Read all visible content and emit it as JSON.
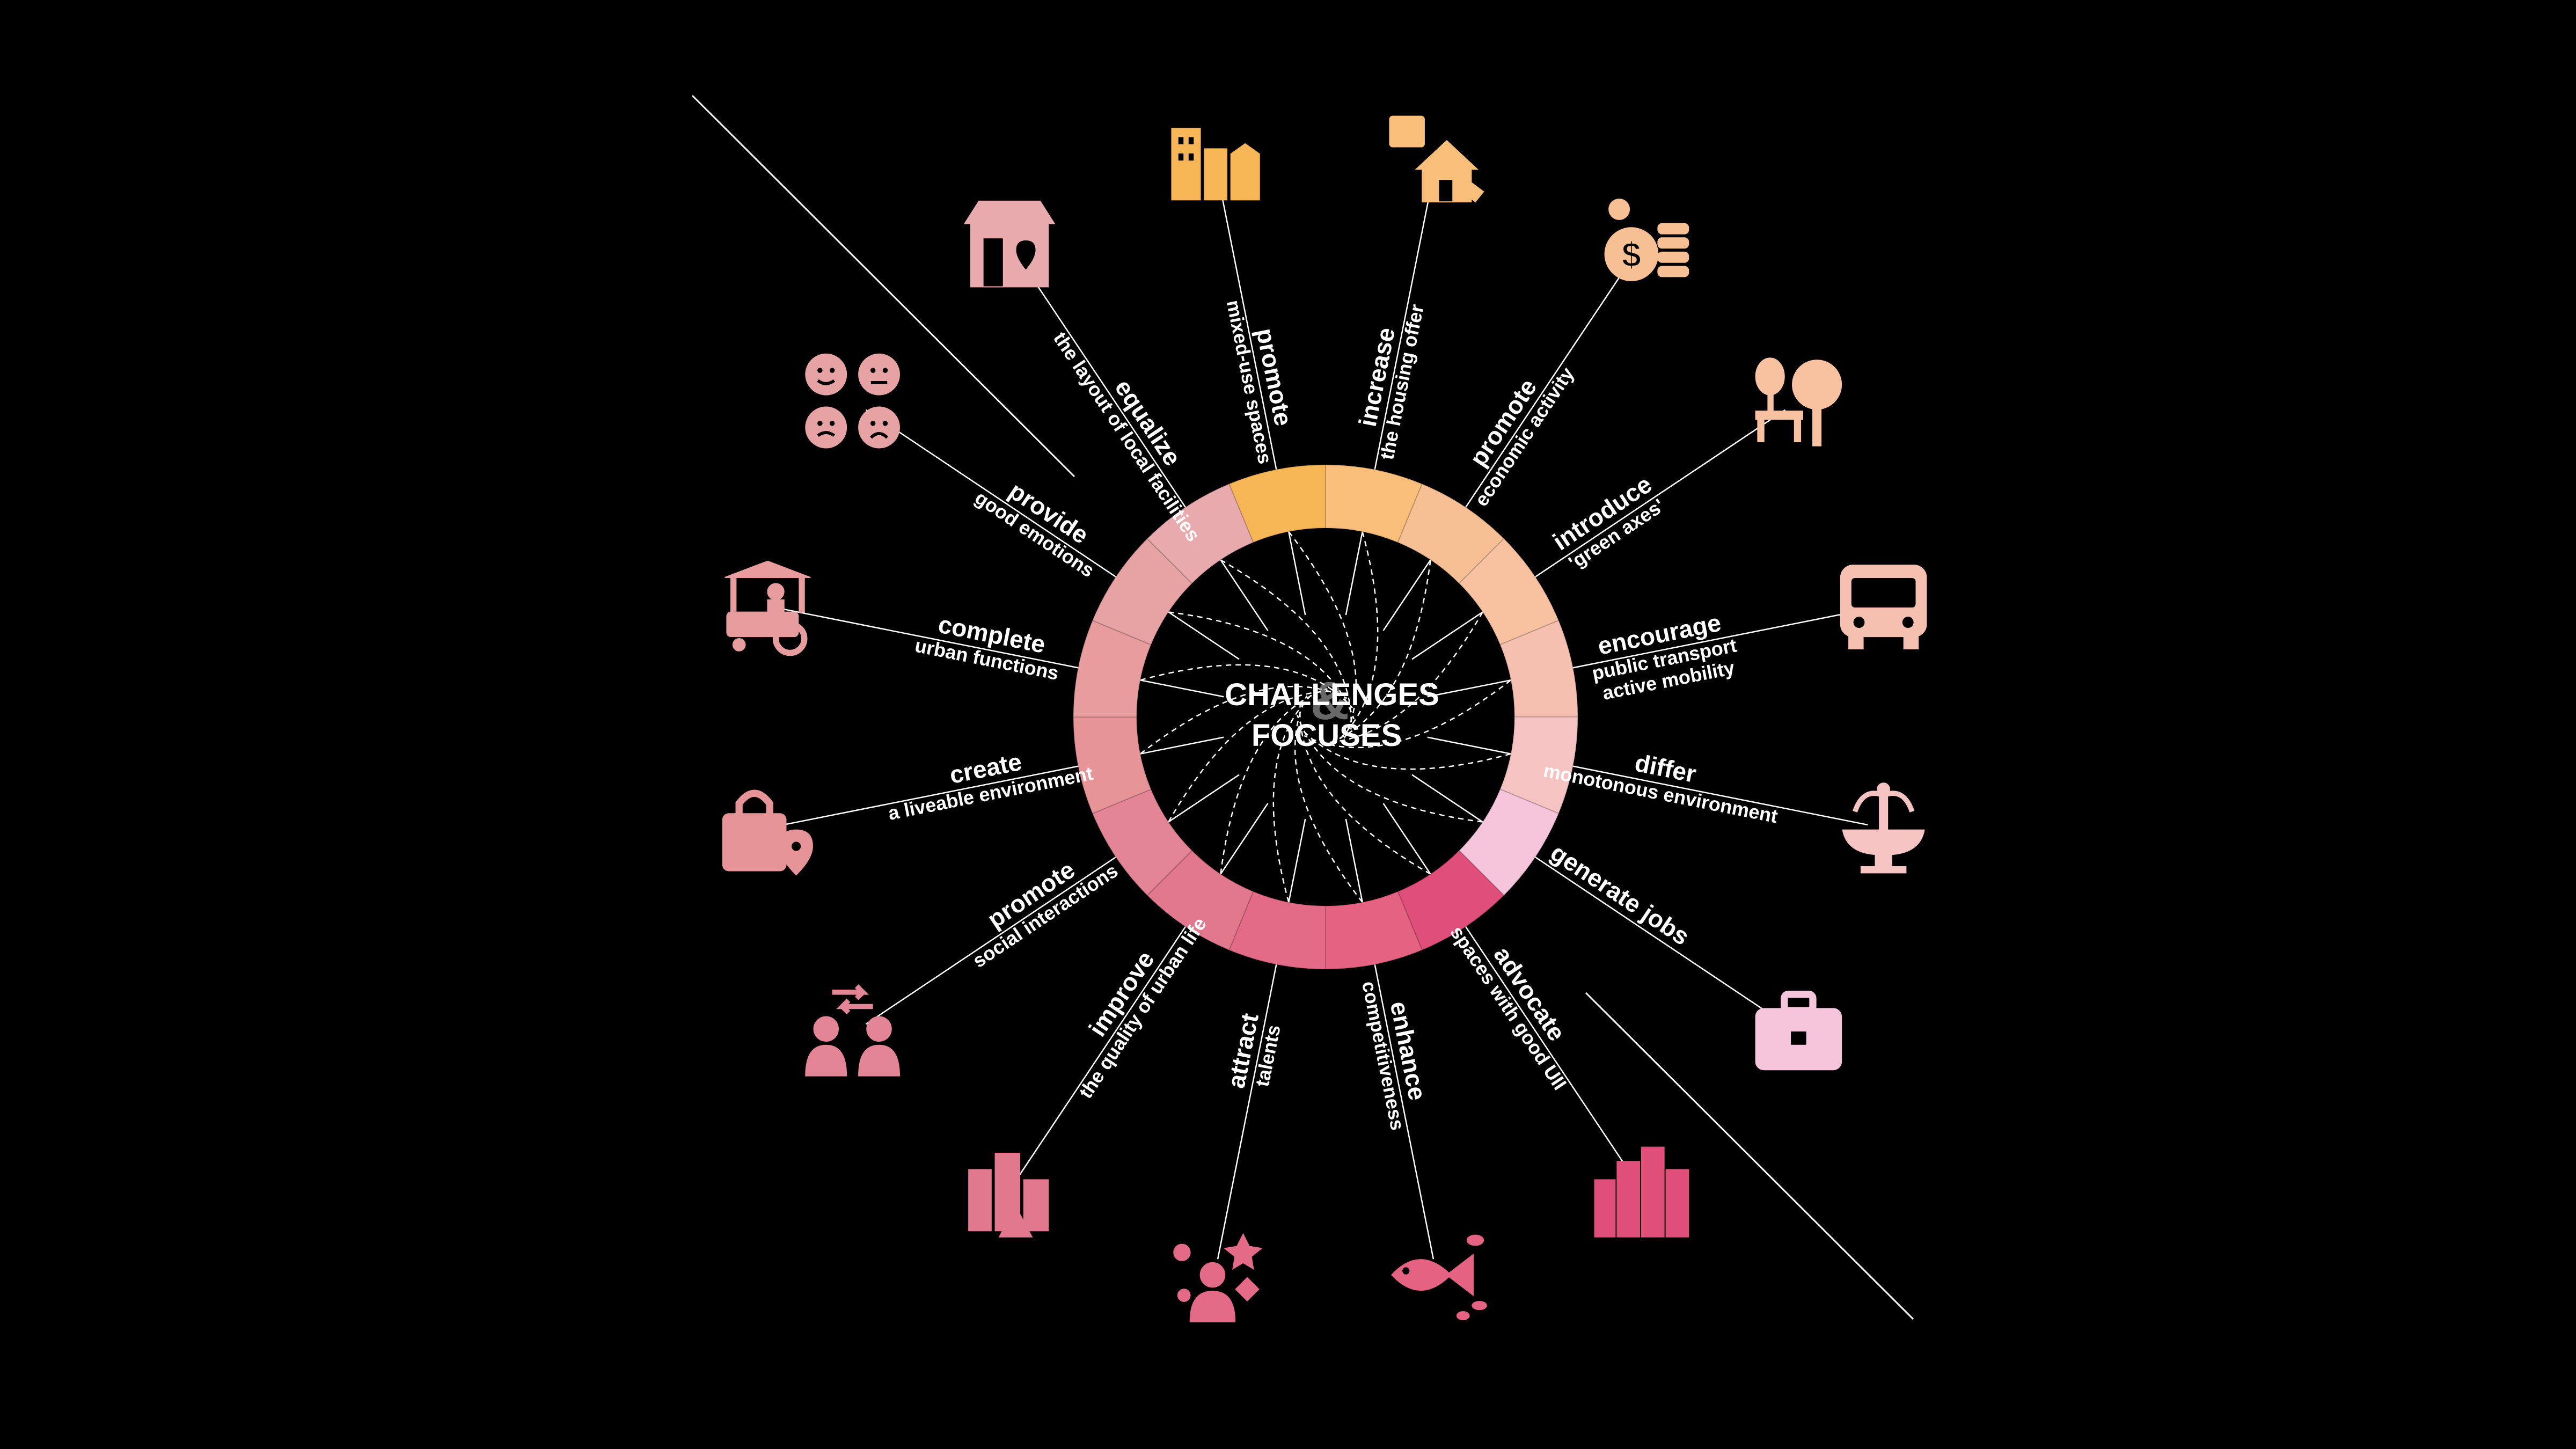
{
  "center": {
    "line1": "CHALLENGES",
    "line2": "FOCUSES",
    "amp": "&"
  },
  "items": [
    {
      "verb": "promote",
      "phrase": "mixed-use spaces",
      "icon": "mixed-use-buildings-icon",
      "color": "#F6B656"
    },
    {
      "verb": "increase",
      "phrase": "the housing offer",
      "icon": "house-calendar-tag-icon",
      "color": "#F8BE7A"
    },
    {
      "verb": "promote",
      "phrase": "economic activity",
      "icon": "money-coins-icon",
      "color": "#F7C094"
    },
    {
      "verb": "introduce",
      "phrase": "'green axes'",
      "icon": "park-bench-tree-icon",
      "color": "#F8C2A1"
    },
    {
      "verb": "encourage",
      "phrase": "public transport",
      "phrase2": "active mobility",
      "icon": "bus-icon",
      "color": "#F5C0B0"
    },
    {
      "verb": "differ",
      "phrase": "monotonous environment",
      "icon": "fountain-icon",
      "color": "#F5C3C2"
    },
    {
      "verb": "generate jobs",
      "phrase": "",
      "icon": "briefcase-icon",
      "color": "#F5C5DC"
    },
    {
      "verb": "advocate",
      "phrase": "spaces with good UII",
      "icon": "city-skyline-icon",
      "color": "#E04E7A"
    },
    {
      "verb": "enhance",
      "phrase": "competitiveness",
      "icon": "big-fish-icon",
      "color": "#E46282"
    },
    {
      "verb": "attract",
      "phrase": "talents",
      "icon": "people-shapes-icon",
      "color": "#E36B87"
    },
    {
      "verb": "improve",
      "phrase": "the quality of urban life",
      "icon": "city-trees-icon",
      "color": "#E2788D"
    },
    {
      "verb": "promote",
      "phrase": "social interactions",
      "icon": "people-exchange-icon",
      "color": "#E38594"
    },
    {
      "verb": "create",
      "phrase": "a liveable environment",
      "icon": "bag-location-icon",
      "color": "#E69497"
    },
    {
      "verb": "complete",
      "phrase": "urban functions",
      "icon": "food-cart-vendor-icon",
      "color": "#E79C9D"
    },
    {
      "verb": "provide",
      "phrase": "good emotions",
      "icon": "emotion-faces-icon",
      "color": "#E7A3A3"
    },
    {
      "verb": "equalize",
      "phrase": "the layout of local facilities",
      "icon": "shop-location-icon",
      "color": "#E8AAAC"
    }
  ]
}
